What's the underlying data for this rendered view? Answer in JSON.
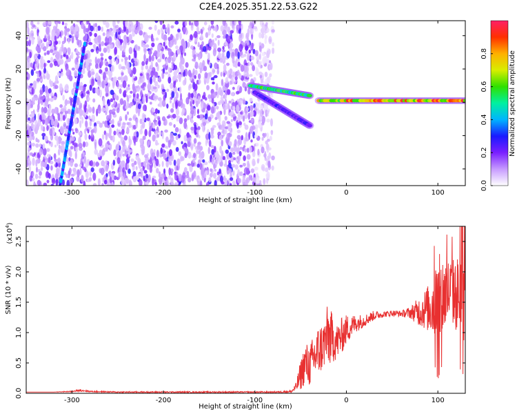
{
  "title": "C2E4.2025.351.22.53.G22",
  "chart_data": [
    {
      "type": "heatmap",
      "name": "spectrogram",
      "xlabel": "Height of straight line (km)",
      "ylabel": "Frequency (Hz)",
      "xlim": [
        -350,
        130
      ],
      "ylim": [
        -50,
        49
      ],
      "xticks": [
        -300,
        -200,
        -100,
        0,
        100
      ],
      "yticks": [
        -40,
        -20,
        0,
        20,
        40
      ],
      "colorbar": {
        "label": "Normalized spectral amplitude",
        "range": [
          0,
          1
        ],
        "ticks": [
          "0.0",
          "0.2",
          "0.4",
          "0.6",
          "0.8"
        ],
        "tick_values": [
          0,
          0.2,
          0.4,
          0.6,
          0.8
        ]
      },
      "features": [
        {
          "kind": "diffuse-noise",
          "x_range": [
            -350,
            -80
          ],
          "freq_range": [
            -50,
            49
          ],
          "amplitude": 0.12
        },
        {
          "kind": "chirp-line",
          "x_start": -313,
          "f_start": -50,
          "x_end": -286,
          "f_end": 35,
          "amplitude": 0.35
        },
        {
          "kind": "tone",
          "x_range": [
            -30,
            130
          ],
          "freq": 1,
          "amplitude": 0.8
        },
        {
          "kind": "tone",
          "x_range": [
            -105,
            -40
          ],
          "freq_start": 10,
          "freq_end": 4,
          "amplitude": 0.55
        },
        {
          "kind": "tone",
          "x_range": [
            -100,
            -40
          ],
          "freq_start": 6,
          "freq_end": -14,
          "amplitude": 0.25
        }
      ]
    },
    {
      "type": "line",
      "name": "snr",
      "xlabel": "Height of straight line (km)",
      "ylabel": "SNR (10 * v/v)",
      "y_scale_label": "(x10",
      "y_scale_exponent": "4",
      "xlim": [
        -350,
        130
      ],
      "ylim": [
        0,
        2.75
      ],
      "xticks": [
        -300,
        -200,
        -100,
        0,
        100
      ],
      "yticks": [
        "0.0",
        "0.5",
        "1.0",
        "1.5",
        "2.0",
        "2.5"
      ],
      "ytick_values": [
        0,
        0.5,
        1.0,
        1.5,
        2.0,
        2.5
      ],
      "series": [
        {
          "name": "SNR",
          "color": "#e83030",
          "x": [
            -350,
            -320,
            -300,
            -290,
            -280,
            -250,
            -200,
            -150,
            -100,
            -80,
            -60,
            -55,
            -50,
            -45,
            -40,
            -35,
            -30,
            -25,
            -20,
            -15,
            -10,
            -5,
            0,
            10,
            20,
            30,
            40,
            50,
            60,
            70,
            80,
            90,
            95,
            100,
            105,
            110,
            115,
            120,
            125,
            130
          ],
          "values": [
            0.02,
            0.02,
            0.03,
            0.05,
            0.03,
            0.02,
            0.02,
            0.02,
            0.02,
            0.02,
            0.03,
            0.1,
            0.3,
            0.5,
            0.45,
            0.6,
            0.7,
            0.8,
            0.95,
            0.9,
            0.85,
            0.95,
            1.05,
            1.15,
            1.2,
            1.28,
            1.3,
            1.32,
            1.31,
            1.33,
            1.35,
            1.4,
            1.45,
            1.5,
            1.6,
            1.65,
            1.7,
            1.6,
            1.65,
            1.7
          ],
          "noise_amplitude": [
            0,
            0,
            0.01,
            0.02,
            0.01,
            0.01,
            0.01,
            0.01,
            0.01,
            0.01,
            0.02,
            0.08,
            0.25,
            0.35,
            0.35,
            0.4,
            0.45,
            0.4,
            0.55,
            0.4,
            0.3,
            0.3,
            0.25,
            0.15,
            0.1,
            0.08,
            0.05,
            0.05,
            0.05,
            0.1,
            0.25,
            0.4,
            0.55,
            0.8,
            0.7,
            0.6,
            0.55,
            0.6,
            0.8,
            0.9
          ]
        }
      ]
    }
  ]
}
